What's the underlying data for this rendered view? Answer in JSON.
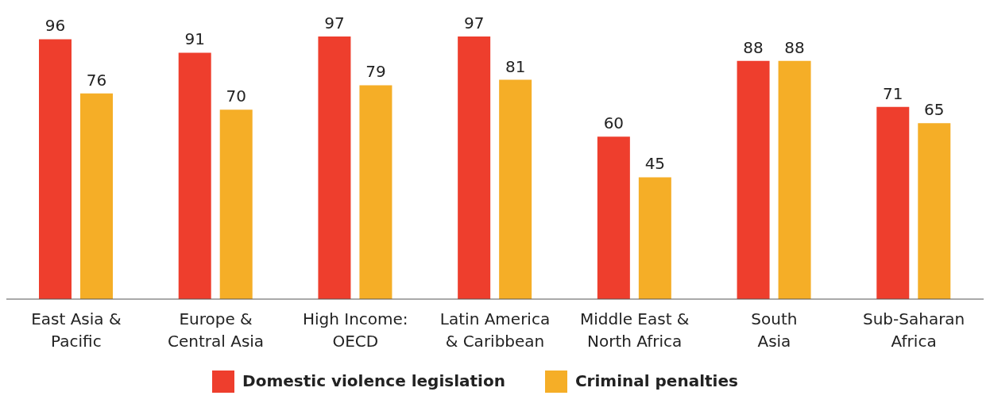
{
  "chart_data": {
    "type": "bar",
    "categories": [
      "East Asia &\nPacific",
      "Europe &\nCentral Asia",
      "High Income:\nOECD",
      "Latin America\n& Caribbean",
      "Middle East &\nNorth Africa",
      "South\nAsia",
      "Sub-Saharan\nAfrica"
    ],
    "series": [
      {
        "name": "Domestic violence legislation",
        "color": "#ee3e2d",
        "values": [
          96,
          91,
          97,
          97,
          60,
          88,
          71
        ]
      },
      {
        "name": "Criminal penalties",
        "color": "#f5ae27",
        "values": [
          76,
          70,
          79,
          81,
          45,
          88,
          65
        ]
      }
    ],
    "data_labels": true,
    "legend": "bottom",
    "grid": false
  }
}
